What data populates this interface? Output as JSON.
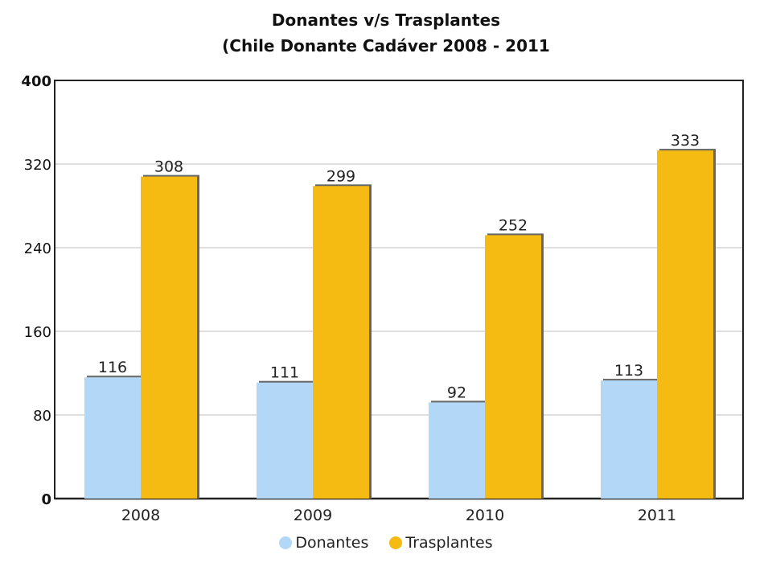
{
  "chart_data": {
    "type": "bar",
    "title": "Donantes v/s Trasplantes",
    "subtitle": "(Chile Donante Cadáver 2008 - 2011",
    "categories": [
      "2008",
      "2009",
      "2010",
      "2011"
    ],
    "series": [
      {
        "name": "Donantes",
        "values": [
          116,
          111,
          92,
          113
        ],
        "color": "#b3d8f7"
      },
      {
        "name": "Trasplantes",
        "values": [
          308,
          299,
          252,
          333
        ],
        "color": "#f5bb12"
      }
    ],
    "ylim": [
      0,
      400
    ],
    "yticks": [
      0,
      80,
      160,
      240,
      320,
      400
    ],
    "grid": true,
    "legend_position": "bottom"
  }
}
